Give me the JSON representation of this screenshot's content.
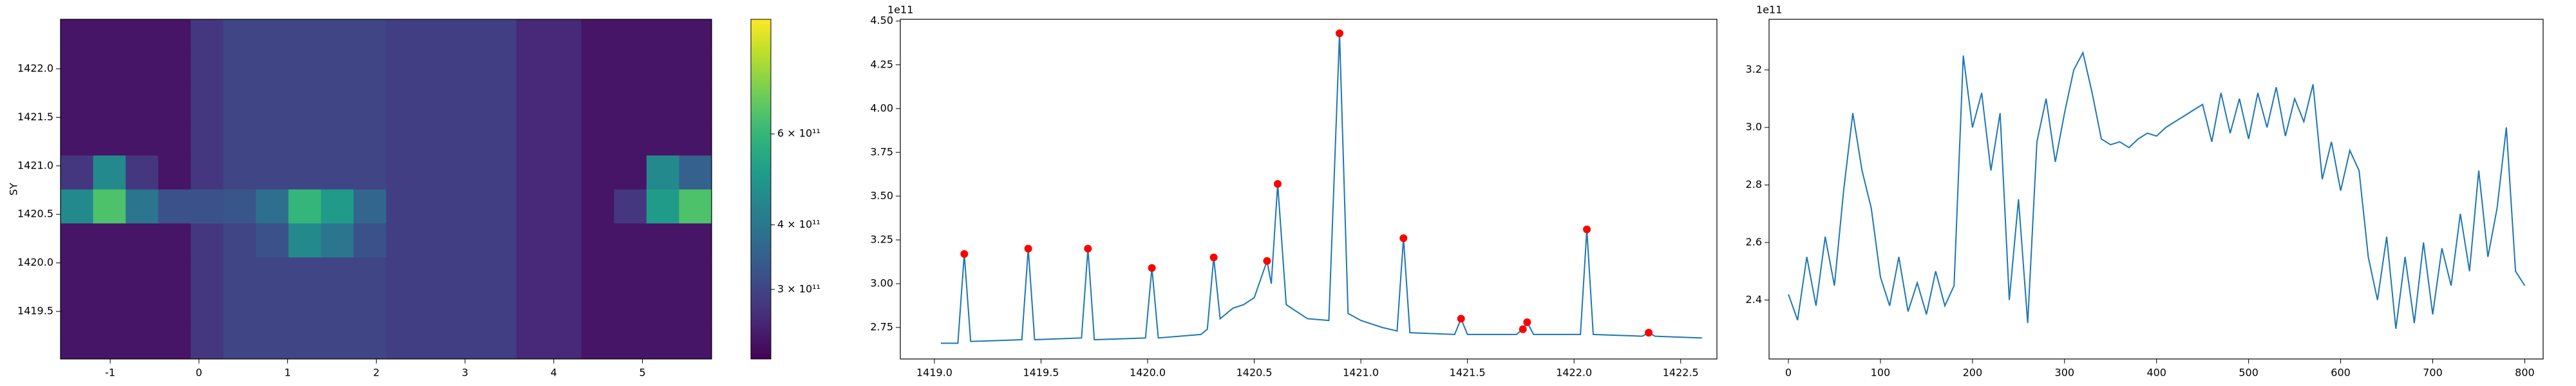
{
  "chart_data": [
    {
      "type": "heatmap",
      "ylabel": "SY",
      "x_edges": [
        -1.56,
        -1.193,
        -0.826,
        -0.459,
        -0.092,
        0.275,
        0.642,
        1.009,
        1.376,
        1.743,
        2.11,
        2.477,
        2.844,
        3.211,
        3.578,
        3.945,
        4.312,
        4.679,
        5.046,
        5.413,
        5.78
      ],
      "y_edges": [
        1419.01,
        1419.36,
        1419.71,
        1420.06,
        1420.41,
        1420.76,
        1421.11,
        1421.46,
        1421.81,
        1422.16,
        1422.51
      ],
      "z": [
        [
          240000000000.0,
          240000000000.0,
          240000000000.0,
          240000000000.0,
          280000000000.0,
          300000000000.0,
          300000000000.0,
          300000000000.0,
          300000000000.0,
          300000000000.0,
          290000000000.0,
          290000000000.0,
          290000000000.0,
          290000000000.0,
          260000000000.0,
          260000000000.0,
          240000000000.0,
          240000000000.0,
          240000000000.0,
          240000000000.0
        ],
        [
          240000000000.0,
          240000000000.0,
          240000000000.0,
          240000000000.0,
          280000000000.0,
          300000000000.0,
          300000000000.0,
          300000000000.0,
          300000000000.0,
          300000000000.0,
          290000000000.0,
          290000000000.0,
          290000000000.0,
          290000000000.0,
          260000000000.0,
          260000000000.0,
          240000000000.0,
          240000000000.0,
          240000000000.0,
          240000000000.0
        ],
        [
          240000000000.0,
          240000000000.0,
          240000000000.0,
          240000000000.0,
          280000000000.0,
          300000000000.0,
          300000000000.0,
          300000000000.0,
          300000000000.0,
          300000000000.0,
          290000000000.0,
          290000000000.0,
          290000000000.0,
          290000000000.0,
          260000000000.0,
          260000000000.0,
          240000000000.0,
          240000000000.0,
          240000000000.0,
          240000000000.0
        ],
        [
          240000000000.0,
          240000000000.0,
          240000000000.0,
          240000000000.0,
          280000000000.0,
          300000000000.0,
          320000000000.0,
          450000000000.0,
          400000000000.0,
          320000000000.0,
          290000000000.0,
          290000000000.0,
          290000000000.0,
          290000000000.0,
          260000000000.0,
          260000000000.0,
          240000000000.0,
          240000000000.0,
          240000000000.0,
          240000000000.0
        ],
        [
          450000000000.0,
          650000000000.0,
          400000000000.0,
          320000000000.0,
          320000000000.0,
          330000000000.0,
          380000000000.0,
          600000000000.0,
          500000000000.0,
          360000000000.0,
          290000000000.0,
          290000000000.0,
          290000000000.0,
          290000000000.0,
          260000000000.0,
          260000000000.0,
          240000000000.0,
          280000000000.0,
          500000000000.0,
          650000000000.0
        ],
        [
          280000000000.0,
          450000000000.0,
          280000000000.0,
          240000000000.0,
          280000000000.0,
          300000000000.0,
          300000000000.0,
          300000000000.0,
          300000000000.0,
          300000000000.0,
          290000000000.0,
          290000000000.0,
          290000000000.0,
          290000000000.0,
          260000000000.0,
          260000000000.0,
          240000000000.0,
          240000000000.0,
          450000000000.0,
          350000000000.0
        ],
        [
          240000000000.0,
          240000000000.0,
          240000000000.0,
          240000000000.0,
          280000000000.0,
          300000000000.0,
          300000000000.0,
          300000000000.0,
          300000000000.0,
          300000000000.0,
          290000000000.0,
          290000000000.0,
          290000000000.0,
          290000000000.0,
          260000000000.0,
          260000000000.0,
          240000000000.0,
          240000000000.0,
          240000000000.0,
          240000000000.0
        ],
        [
          240000000000.0,
          240000000000.0,
          240000000000.0,
          240000000000.0,
          280000000000.0,
          300000000000.0,
          300000000000.0,
          300000000000.0,
          300000000000.0,
          300000000000.0,
          290000000000.0,
          290000000000.0,
          290000000000.0,
          290000000000.0,
          260000000000.0,
          260000000000.0,
          240000000000.0,
          240000000000.0,
          240000000000.0,
          240000000000.0
        ],
        [
          240000000000.0,
          240000000000.0,
          240000000000.0,
          240000000000.0,
          280000000000.0,
          300000000000.0,
          300000000000.0,
          300000000000.0,
          300000000000.0,
          300000000000.0,
          290000000000.0,
          290000000000.0,
          290000000000.0,
          290000000000.0,
          260000000000.0,
          260000000000.0,
          240000000000.0,
          240000000000.0,
          240000000000.0,
          240000000000.0
        ],
        [
          240000000000.0,
          240000000000.0,
          240000000000.0,
          240000000000.0,
          280000000000.0,
          300000000000.0,
          300000000000.0,
          300000000000.0,
          300000000000.0,
          300000000000.0,
          290000000000.0,
          290000000000.0,
          290000000000.0,
          290000000000.0,
          260000000000.0,
          260000000000.0,
          240000000000.0,
          240000000000.0,
          240000000000.0,
          240000000000.0
        ]
      ],
      "xlim": [
        -1.56,
        5.78
      ],
      "ylim": [
        1419.01,
        1422.51
      ],
      "xticks": [
        -1,
        0,
        1,
        2,
        3,
        4,
        5
      ],
      "yticks": [
        1419.5,
        {
          "value": 1420.0,
          "label": "1420.0"
        },
        1420.5,
        {
          "value": 1421.0,
          "label": "1421.0"
        },
        1421.5,
        {
          "value": 1422.0,
          "label": "1422.0"
        }
      ],
      "colorbar": {
        "scale": "log",
        "colormap": "viridis",
        "clim": [
          220000000000.0,
          1000000000000.0
        ],
        "ticks": [
          {
            "value": 300000000000.0,
            "label": "3 × 10¹¹"
          },
          {
            "value": 400000000000.0,
            "label": "4 × 10¹¹"
          },
          {
            "value": 600000000000.0,
            "label": "6 × 10¹¹"
          }
        ]
      }
    },
    {
      "type": "line",
      "offset_label": "1e11",
      "series": [
        {
          "color": "#1f77b4",
          "x": [
            1419.03,
            1419.11,
            1419.14,
            1419.17,
            1419.41,
            1419.44,
            1419.47,
            1419.69,
            1419.72,
            1419.75,
            1419.99,
            1420.02,
            1420.05,
            1420.25,
            1420.28,
            1420.31,
            1420.34,
            1420.4,
            1420.45,
            1420.5,
            1420.56,
            1420.58,
            1420.61,
            1420.65,
            1420.75,
            1420.85,
            1420.9,
            1420.94,
            1421.0,
            1421.1,
            1421.17,
            1421.2,
            1421.23,
            1421.44,
            1421.47,
            1421.5,
            1421.73,
            1421.76,
            1421.78,
            1421.81,
            1422.03,
            1422.06,
            1422.09,
            1422.32,
            1422.35,
            1422.38,
            1422.6
          ],
          "values": [
            2.66,
            2.66,
            3.17,
            2.67,
            2.68,
            3.2,
            2.68,
            2.69,
            3.2,
            2.68,
            2.69,
            3.09,
            2.69,
            2.71,
            2.74,
            3.15,
            2.8,
            2.86,
            2.88,
            2.92,
            3.13,
            3.0,
            3.57,
            2.88,
            2.8,
            2.79,
            4.43,
            2.83,
            2.79,
            2.75,
            2.73,
            3.26,
            2.72,
            2.71,
            2.8,
            2.71,
            2.71,
            2.74,
            2.78,
            2.71,
            2.71,
            3.31,
            2.71,
            2.7,
            2.72,
            2.7,
            2.69
          ]
        }
      ],
      "peaks": {
        "color": "#ff0000",
        "x": [
          1419.14,
          1419.44,
          1419.72,
          1420.02,
          1420.31,
          1420.56,
          1420.61,
          1420.9,
          1421.2,
          1421.47,
          1421.76,
          1421.78,
          1422.06,
          1422.35
        ],
        "values": [
          3.17,
          3.2,
          3.2,
          3.09,
          3.15,
          3.13,
          3.57,
          4.43,
          3.26,
          2.8,
          2.74,
          2.78,
          3.31,
          2.72
        ]
      },
      "xlim": [
        1418.84,
        1422.67
      ],
      "ylim": [
        2.57,
        4.51
      ],
      "xticks": [
        {
          "value": 1419.0,
          "label": "1419.0"
        },
        1419.5,
        {
          "value": 1420.0,
          "label": "1420.0"
        },
        1420.5,
        {
          "value": 1421.0,
          "label": "1421.0"
        },
        1421.5,
        {
          "value": 1422.0,
          "label": "1422.0"
        },
        1422.5
      ],
      "yticks": [
        2.75,
        {
          "value": 3.0,
          "label": "3.00"
        },
        3.25,
        {
          "value": 3.5,
          "label": "3.50"
        },
        3.75,
        {
          "value": 4.0,
          "label": "4.00"
        },
        4.25,
        {
          "value": 4.5,
          "label": "4.50"
        }
      ]
    },
    {
      "type": "line",
      "offset_label": "1e11",
      "series": [
        {
          "color": "#1f77b4",
          "x": [
            0,
            10,
            20,
            30,
            40,
            50,
            60,
            70,
            80,
            90,
            100,
            110,
            120,
            130,
            140,
            150,
            160,
            170,
            180,
            190,
            200,
            210,
            220,
            230,
            240,
            250,
            260,
            270,
            280,
            290,
            300,
            310,
            320,
            330,
            340,
            350,
            360,
            370,
            380,
            390,
            400,
            410,
            420,
            430,
            440,
            450,
            460,
            470,
            480,
            490,
            500,
            510,
            520,
            530,
            540,
            550,
            560,
            570,
            580,
            590,
            600,
            610,
            620,
            630,
            640,
            650,
            660,
            670,
            680,
            690,
            700,
            710,
            720,
            730,
            740,
            750,
            760,
            770,
            780,
            790,
            800
          ],
          "values": [
            2.42,
            2.33,
            2.55,
            2.38,
            2.62,
            2.45,
            2.78,
            3.05,
            2.85,
            2.72,
            2.48,
            2.38,
            2.55,
            2.36,
            2.46,
            2.35,
            2.5,
            2.38,
            2.45,
            3.25,
            3.0,
            3.12,
            2.85,
            3.05,
            2.4,
            2.75,
            2.32,
            2.95,
            3.1,
            2.88,
            3.05,
            3.2,
            3.26,
            3.12,
            2.96,
            2.94,
            2.95,
            2.93,
            2.96,
            2.98,
            2.97,
            3.0,
            3.02,
            3.04,
            3.06,
            3.08,
            2.95,
            3.12,
            2.98,
            3.1,
            2.96,
            3.12,
            3.0,
            3.14,
            2.97,
            3.1,
            3.02,
            3.15,
            2.82,
            2.95,
            2.78,
            2.92,
            2.85,
            2.55,
            2.4,
            2.62,
            2.3,
            2.55,
            2.32,
            2.6,
            2.35,
            2.58,
            2.45,
            2.7,
            2.5,
            2.85,
            2.55,
            2.72,
            3.0,
            2.5,
            2.45
          ]
        }
      ],
      "xlim": [
        -21,
        820
      ],
      "ylim": [
        2.195,
        3.376
      ],
      "xticks": [
        0,
        100,
        200,
        300,
        400,
        500,
        600,
        700,
        800
      ],
      "yticks": [
        2.4,
        2.6,
        2.8,
        {
          "value": 3.0,
          "label": "3.0"
        },
        3.2
      ]
    }
  ]
}
